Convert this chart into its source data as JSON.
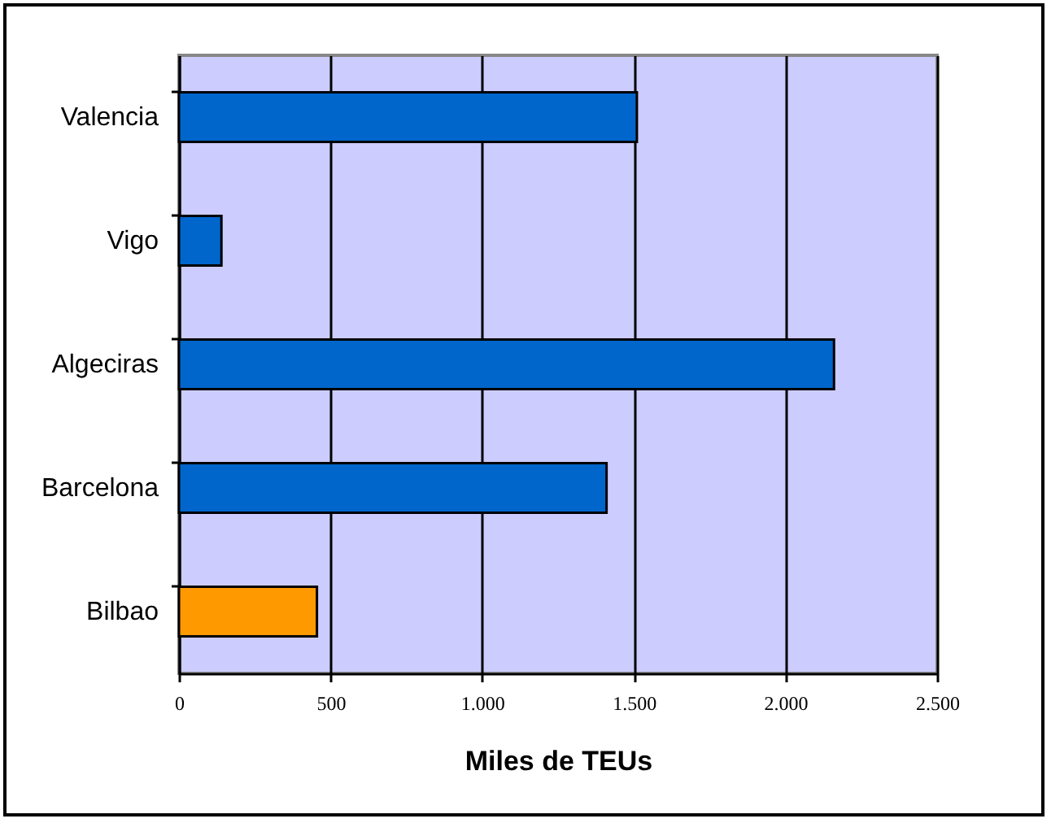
{
  "chart_data": {
    "type": "bar",
    "orientation": "horizontal",
    "xlabel": "Miles de TEUs",
    "categories": [
      "Valencia",
      "Vigo",
      "Algeciras",
      "Barcelona",
      "Bilbao"
    ],
    "values": [
      1510,
      140,
      2160,
      1410,
      455
    ],
    "colors": [
      "#0066cc",
      "#0066cc",
      "#0066cc",
      "#0066cc",
      "#ff9900"
    ],
    "xlim": [
      0,
      2500
    ],
    "xticks": [
      {
        "value": 0,
        "label": "0"
      },
      {
        "value": 500,
        "label": "500"
      },
      {
        "value": 1000,
        "label": "1.000"
      },
      {
        "value": 1500,
        "label": "1.500"
      },
      {
        "value": 2000,
        "label": "2.000"
      },
      {
        "value": 2500,
        "label": "2.500"
      }
    ],
    "grid": "x",
    "legend": false
  }
}
